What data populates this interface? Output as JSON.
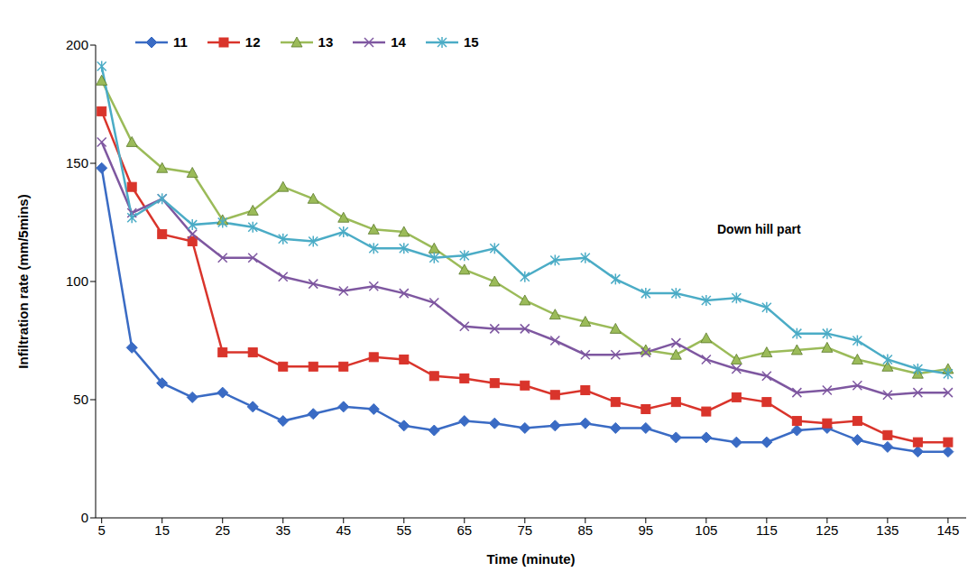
{
  "chart_data": {
    "type": "line",
    "x_label": "Time (minute)",
    "y_label": "Infiltration rate (mm/5mins)",
    "annotation": "Down hill part",
    "x": [
      5,
      10,
      15,
      20,
      25,
      30,
      35,
      40,
      45,
      50,
      55,
      60,
      65,
      70,
      75,
      80,
      85,
      90,
      95,
      100,
      105,
      110,
      115,
      120,
      125,
      130,
      135,
      140,
      145
    ],
    "series": [
      {
        "name": "11",
        "color": "#3a6bc4",
        "marker": "diamond",
        "values": [
          148,
          72,
          57,
          51,
          53,
          47,
          41,
          44,
          47,
          46,
          39,
          37,
          41,
          40,
          38,
          39,
          40,
          38,
          38,
          34,
          34,
          32,
          32,
          37,
          38,
          33,
          30,
          28,
          28
        ]
      },
      {
        "name": "12",
        "color": "#d9342b",
        "marker": "square",
        "values": [
          172,
          140,
          120,
          117,
          70,
          70,
          64,
          64,
          64,
          68,
          67,
          60,
          59,
          57,
          56,
          52,
          54,
          49,
          46,
          49,
          45,
          51,
          49,
          41,
          40,
          41,
          35,
          32,
          32
        ]
      },
      {
        "name": "13",
        "color": "#9bbb59",
        "marker": "triangle",
        "values": [
          185,
          159,
          148,
          146,
          126,
          130,
          140,
          135,
          127,
          122,
          121,
          114,
          105,
          100,
          92,
          86,
          83,
          80,
          71,
          69,
          76,
          67,
          70,
          71,
          72,
          67,
          64,
          61,
          63
        ]
      },
      {
        "name": "14",
        "color": "#7e57a0",
        "marker": "x",
        "values": [
          159,
          129,
          135,
          120,
          110,
          110,
          102,
          99,
          96,
          98,
          95,
          91,
          81,
          80,
          80,
          75,
          69,
          69,
          70,
          74,
          67,
          63,
          60,
          53,
          54,
          56,
          52,
          53,
          53
        ]
      },
      {
        "name": "15",
        "color": "#4bacc6",
        "marker": "star",
        "values": [
          191,
          127,
          135,
          124,
          125,
          123,
          118,
          117,
          121,
          114,
          114,
          110,
          111,
          114,
          102,
          109,
          110,
          101,
          95,
          95,
          92,
          93,
          89,
          78,
          78,
          75,
          67,
          63,
          61
        ]
      }
    ],
    "xlim": [
      4,
      148
    ],
    "xticks": [
      5,
      15,
      25,
      35,
      45,
      55,
      65,
      75,
      85,
      95,
      105,
      115,
      125,
      135,
      145
    ],
    "ylim": [
      0,
      200
    ],
    "yticks": [
      0,
      50,
      100,
      150,
      200
    ],
    "grid": false,
    "legend": "top-left"
  }
}
